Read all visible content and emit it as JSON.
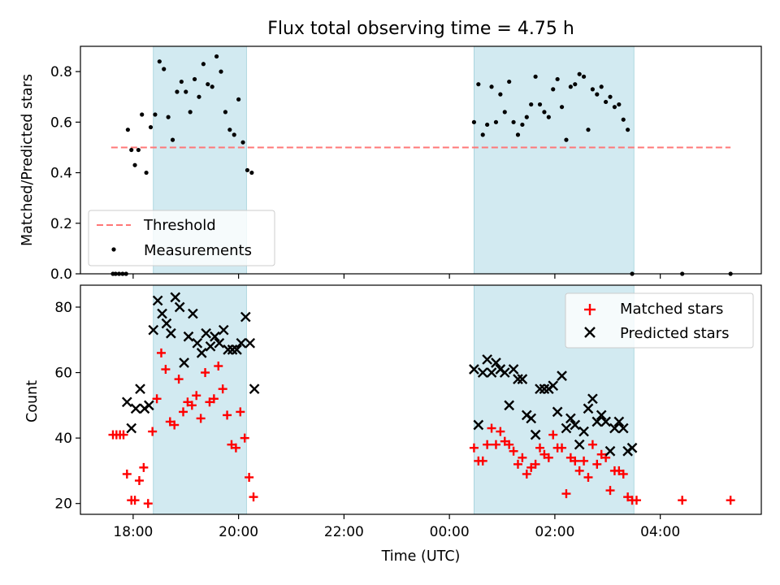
{
  "chart_data": [
    {
      "type": "scatter",
      "title": "Flux total observing time = 4.75 h",
      "xlabel": "",
      "ylabel": "Matched/Predicted stars",
      "ylim": [
        0,
        0.9
      ],
      "yticks": [
        "0.0",
        "0.2",
        "0.4",
        "0.6",
        "0.8"
      ],
      "xlim": [
        "17:00",
        "05:55"
      ],
      "shaded_intervals": [
        [
          "18:23",
          "20:09"
        ],
        [
          "00:28",
          "03:30"
        ]
      ],
      "threshold": {
        "name": "Threshold",
        "y": 0.5,
        "x_range": [
          "17:35",
          "05:20"
        ]
      },
      "legend": [
        "Threshold",
        "Measurements"
      ],
      "legend_position": "lower left",
      "series": [
        {
          "name": "Measurements",
          "points": [
            [
              "17:37",
              0.0
            ],
            [
              "17:40",
              0.0
            ],
            [
              "17:44",
              0.0
            ],
            [
              "17:48",
              0.0
            ],
            [
              "17:52",
              0.0
            ],
            [
              "17:54",
              0.57
            ],
            [
              "17:58",
              0.49
            ],
            [
              "18:02",
              0.43
            ],
            [
              "18:06",
              0.49
            ],
            [
              "18:10",
              0.63
            ],
            [
              "18:15",
              0.4
            ],
            [
              "18:20",
              0.58
            ],
            [
              "18:25",
              0.63
            ],
            [
              "18:30",
              0.84
            ],
            [
              "18:35",
              0.81
            ],
            [
              "18:40",
              0.62
            ],
            [
              "18:45",
              0.53
            ],
            [
              "18:50",
              0.72
            ],
            [
              "18:55",
              0.76
            ],
            [
              "19:00",
              0.72
            ],
            [
              "19:05",
              0.64
            ],
            [
              "19:10",
              0.77
            ],
            [
              "19:15",
              0.7
            ],
            [
              "19:20",
              0.83
            ],
            [
              "19:25",
              0.75
            ],
            [
              "19:30",
              0.74
            ],
            [
              "19:35",
              0.86
            ],
            [
              "19:40",
              0.8
            ],
            [
              "19:45",
              0.64
            ],
            [
              "19:50",
              0.57
            ],
            [
              "19:55",
              0.55
            ],
            [
              "20:00",
              0.69
            ],
            [
              "20:05",
              0.52
            ],
            [
              "20:10",
              0.41
            ],
            [
              "20:15",
              0.4
            ],
            [
              "00:28",
              0.6
            ],
            [
              "00:33",
              0.75
            ],
            [
              "00:38",
              0.55
            ],
            [
              "00:43",
              0.59
            ],
            [
              "00:48",
              0.74
            ],
            [
              "00:53",
              0.6
            ],
            [
              "00:58",
              0.71
            ],
            [
              "01:03",
              0.64
            ],
            [
              "01:08",
              0.76
            ],
            [
              "01:13",
              0.6
            ],
            [
              "01:18",
              0.55
            ],
            [
              "01:23",
              0.59
            ],
            [
              "01:28",
              0.62
            ],
            [
              "01:33",
              0.67
            ],
            [
              "01:38",
              0.78
            ],
            [
              "01:43",
              0.67
            ],
            [
              "01:48",
              0.64
            ],
            [
              "01:53",
              0.62
            ],
            [
              "01:58",
              0.73
            ],
            [
              "02:03",
              0.77
            ],
            [
              "02:08",
              0.66
            ],
            [
              "02:13",
              0.53
            ],
            [
              "02:18",
              0.74
            ],
            [
              "02:23",
              0.75
            ],
            [
              "02:28",
              0.79
            ],
            [
              "02:33",
              0.78
            ],
            [
              "02:38",
              0.57
            ],
            [
              "02:43",
              0.73
            ],
            [
              "02:48",
              0.71
            ],
            [
              "02:53",
              0.74
            ],
            [
              "02:58",
              0.68
            ],
            [
              "03:03",
              0.7
            ],
            [
              "03:08",
              0.66
            ],
            [
              "03:13",
              0.67
            ],
            [
              "03:18",
              0.61
            ],
            [
              "03:23",
              0.57
            ],
            [
              "03:28",
              0.0
            ],
            [
              "04:25",
              0.0
            ],
            [
              "05:20",
              0.0
            ]
          ]
        }
      ]
    },
    {
      "type": "scatter",
      "title": "",
      "xlabel": "Time (UTC)",
      "ylabel": "Count",
      "ylim": [
        16.7,
        86.7
      ],
      "yticks": [
        "20",
        "40",
        "60",
        "80"
      ],
      "xlim": [
        "17:00",
        "05:55"
      ],
      "xticks": [
        "18:00",
        "20:00",
        "22:00",
        "00:00",
        "02:00",
        "04:00"
      ],
      "shaded_intervals": [
        [
          "18:23",
          "20:09"
        ],
        [
          "00:28",
          "03:30"
        ]
      ],
      "legend": [
        "Matched stars",
        "Predicted stars"
      ],
      "legend_position": "upper right",
      "series": [
        {
          "name": "Matched stars",
          "color": "#ff0000",
          "marker": "plus",
          "points": [
            [
              "17:37",
              41
            ],
            [
              "17:41",
              41
            ],
            [
              "17:45",
              41
            ],
            [
              "17:49",
              41
            ],
            [
              "17:53",
              29
            ],
            [
              "17:58",
              21
            ],
            [
              "18:02",
              21
            ],
            [
              "18:07",
              27
            ],
            [
              "18:12",
              31
            ],
            [
              "18:17",
              20
            ],
            [
              "18:22",
              42
            ],
            [
              "18:27",
              52
            ],
            [
              "18:32",
              66
            ],
            [
              "18:37",
              61
            ],
            [
              "18:42",
              45
            ],
            [
              "18:47",
              44
            ],
            [
              "18:52",
              58
            ],
            [
              "18:57",
              48
            ],
            [
              "19:02",
              51
            ],
            [
              "19:07",
              50
            ],
            [
              "19:12",
              53
            ],
            [
              "19:17",
              46
            ],
            [
              "19:22",
              60
            ],
            [
              "19:27",
              51
            ],
            [
              "19:32",
              52
            ],
            [
              "19:37",
              62
            ],
            [
              "19:42",
              55
            ],
            [
              "19:47",
              47
            ],
            [
              "19:52",
              38
            ],
            [
              "19:57",
              37
            ],
            [
              "20:02",
              48
            ],
            [
              "20:07",
              40
            ],
            [
              "20:12",
              28
            ],
            [
              "20:17",
              22
            ],
            [
              "00:28",
              37
            ],
            [
              "00:33",
              33
            ],
            [
              "00:38",
              33
            ],
            [
              "00:43",
              38
            ],
            [
              "00:48",
              43
            ],
            [
              "00:53",
              38
            ],
            [
              "00:58",
              42
            ],
            [
              "01:03",
              39
            ],
            [
              "01:08",
              38
            ],
            [
              "01:13",
              36
            ],
            [
              "01:18",
              32
            ],
            [
              "01:23",
              34
            ],
            [
              "01:28",
              29
            ],
            [
              "01:33",
              31
            ],
            [
              "01:38",
              32
            ],
            [
              "01:43",
              37
            ],
            [
              "01:48",
              35
            ],
            [
              "01:53",
              34
            ],
            [
              "01:58",
              41
            ],
            [
              "02:03",
              37
            ],
            [
              "02:08",
              37
            ],
            [
              "02:13",
              23
            ],
            [
              "02:18",
              34
            ],
            [
              "02:23",
              33
            ],
            [
              "02:28",
              30
            ],
            [
              "02:33",
              33
            ],
            [
              "02:38",
              28
            ],
            [
              "02:43",
              38
            ],
            [
              "02:48",
              32
            ],
            [
              "02:53",
              35
            ],
            [
              "02:58",
              34
            ],
            [
              "03:03",
              24
            ],
            [
              "03:08",
              30
            ],
            [
              "03:13",
              30
            ],
            [
              "03:18",
              29
            ],
            [
              "03:23",
              22
            ],
            [
              "03:28",
              21
            ],
            [
              "03:33",
              21
            ],
            [
              "04:25",
              21
            ],
            [
              "05:20",
              21
            ]
          ]
        },
        {
          "name": "Predicted stars",
          "color": "#000000",
          "marker": "x",
          "points": [
            [
              "17:53",
              51
            ],
            [
              "17:58",
              43
            ],
            [
              "18:03",
              49
            ],
            [
              "18:08",
              55
            ],
            [
              "18:13",
              49
            ],
            [
              "18:18",
              50
            ],
            [
              "18:23",
              73
            ],
            [
              "18:28",
              82
            ],
            [
              "18:33",
              78
            ],
            [
              "18:38",
              75
            ],
            [
              "18:43",
              72
            ],
            [
              "18:48",
              83
            ],
            [
              "18:53",
              80
            ],
            [
              "18:58",
              63
            ],
            [
              "19:03",
              71
            ],
            [
              "19:08",
              78
            ],
            [
              "19:13",
              69
            ],
            [
              "19:18",
              66
            ],
            [
              "19:23",
              72
            ],
            [
              "19:28",
              68
            ],
            [
              "19:33",
              71
            ],
            [
              "19:38",
              69
            ],
            [
              "19:43",
              73
            ],
            [
              "19:48",
              67
            ],
            [
              "19:53",
              67
            ],
            [
              "19:58",
              67
            ],
            [
              "20:03",
              69
            ],
            [
              "20:08",
              77
            ],
            [
              "20:13",
              69
            ],
            [
              "20:18",
              55
            ],
            [
              "00:28",
              61
            ],
            [
              "00:33",
              44
            ],
            [
              "00:38",
              60
            ],
            [
              "00:43",
              64
            ],
            [
              "00:48",
              60
            ],
            [
              "00:53",
              63
            ],
            [
              "00:58",
              61
            ],
            [
              "01:03",
              60
            ],
            [
              "01:08",
              50
            ],
            [
              "01:13",
              61
            ],
            [
              "01:18",
              58
            ],
            [
              "01:23",
              58
            ],
            [
              "01:28",
              47
            ],
            [
              "01:33",
              46
            ],
            [
              "01:38",
              41
            ],
            [
              "01:43",
              55
            ],
            [
              "01:48",
              55
            ],
            [
              "01:53",
              55
            ],
            [
              "01:58",
              56
            ],
            [
              "02:03",
              48
            ],
            [
              "02:08",
              59
            ],
            [
              "02:13",
              43
            ],
            [
              "02:18",
              46
            ],
            [
              "02:23",
              44
            ],
            [
              "02:28",
              38
            ],
            [
              "02:33",
              42
            ],
            [
              "02:38",
              49
            ],
            [
              "02:43",
              52
            ],
            [
              "02:48",
              45
            ],
            [
              "02:53",
              47
            ],
            [
              "02:58",
              45
            ],
            [
              "03:03",
              36
            ],
            [
              "03:08",
              43
            ],
            [
              "03:13",
              45
            ],
            [
              "03:18",
              43
            ],
            [
              "03:23",
              36
            ],
            [
              "03:28",
              37
            ]
          ]
        }
      ]
    }
  ]
}
